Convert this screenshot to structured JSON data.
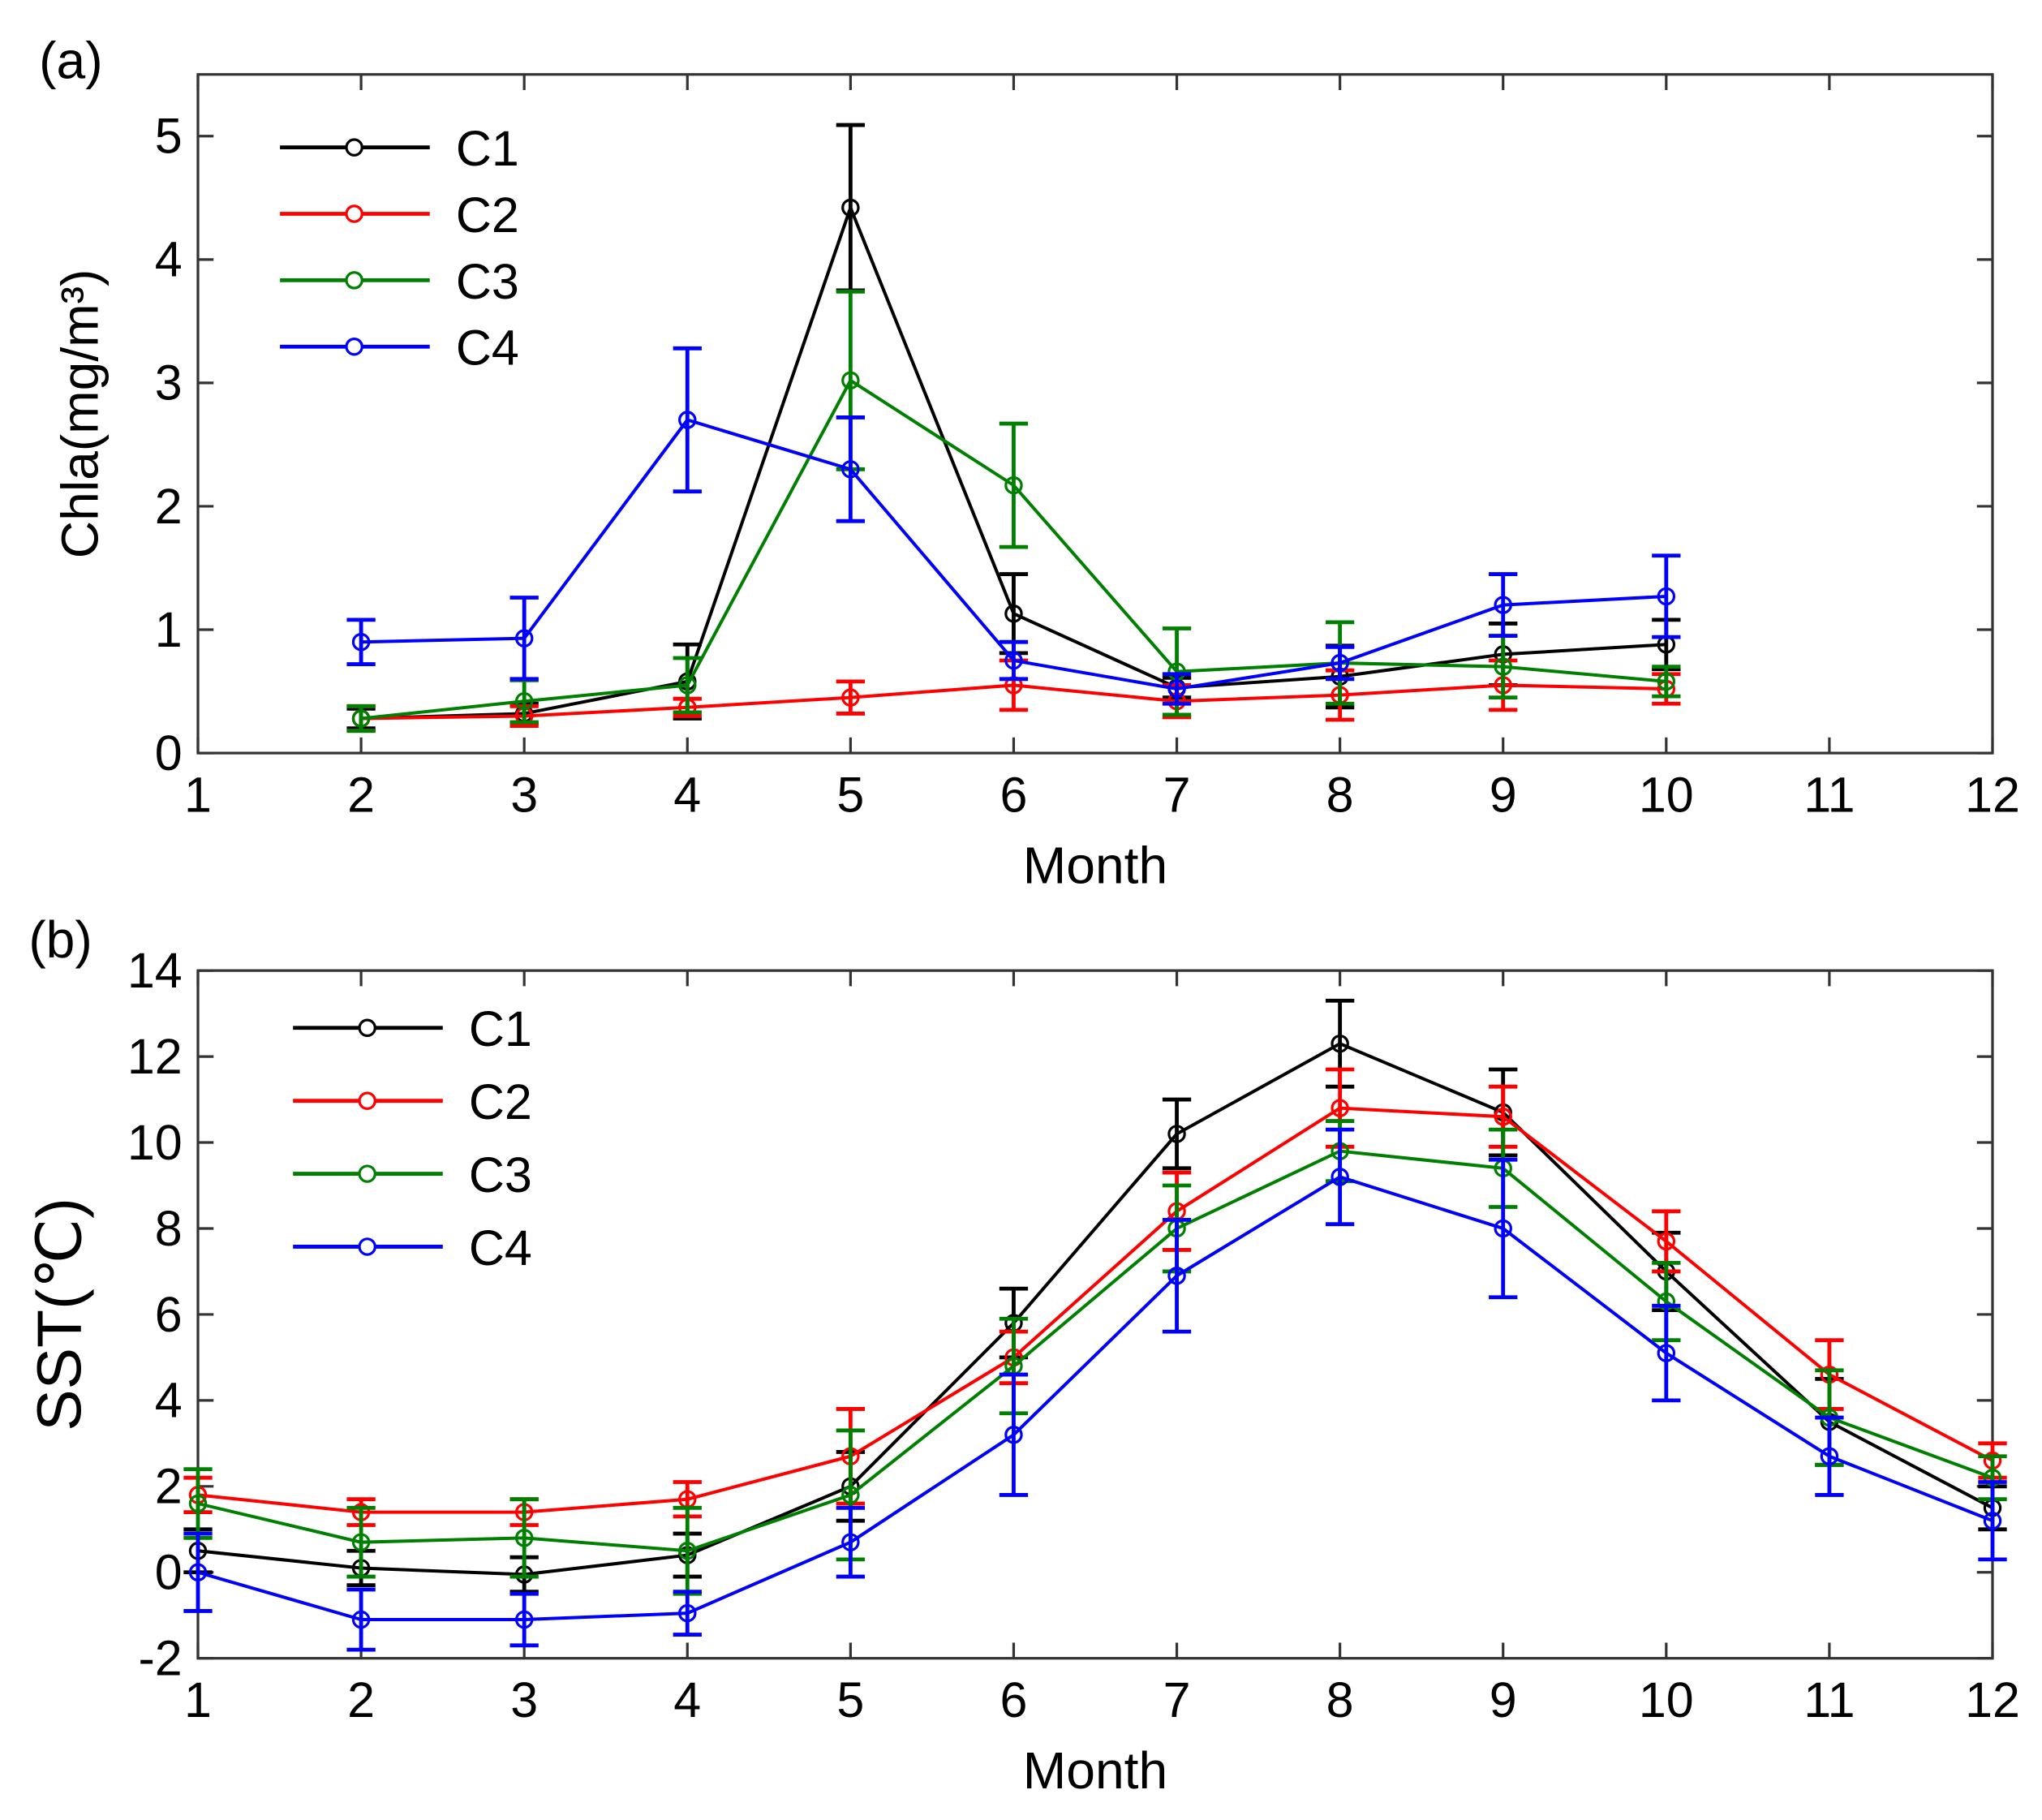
{
  "chart_data": [
    {
      "type": "line",
      "panel_label": "(a)",
      "xlabel": "Month",
      "ylabel": "Chla(mg/m³)",
      "xlim": [
        1,
        12
      ],
      "ylim": [
        0,
        5.5
      ],
      "xticks": [
        "1",
        "2",
        "3",
        "4",
        "5",
        "6",
        "7",
        "8",
        "9",
        "10",
        "11",
        "12"
      ],
      "yticks": [
        "0",
        "1",
        "2",
        "3",
        "4",
        "5"
      ],
      "ytick_values": [
        0,
        1,
        2,
        3,
        4,
        5
      ],
      "legend_position": "top-left",
      "x": [
        2,
        3,
        4,
        5,
        6,
        7,
        8,
        9,
        10
      ],
      "series": [
        {
          "name": "C1",
          "color": "#000000",
          "values": [
            0.28,
            0.32,
            0.58,
            4.42,
            1.13,
            0.53,
            0.62,
            0.8,
            0.88
          ],
          "errors": [
            0.08,
            0.08,
            0.3,
            0.67,
            0.32,
            0.08,
            0.25,
            0.25,
            0.2
          ]
        },
        {
          "name": "C2",
          "color": "#ff0000",
          "values": [
            0.28,
            0.3,
            0.37,
            0.45,
            0.55,
            0.42,
            0.47,
            0.55,
            0.52
          ],
          "errors": [
            0.1,
            0.08,
            0.07,
            0.13,
            0.2,
            0.13,
            0.2,
            0.2,
            0.12
          ]
        },
        {
          "name": "C3",
          "color": "#008000",
          "values": [
            0.28,
            0.42,
            0.55,
            3.02,
            2.17,
            0.66,
            0.73,
            0.7,
            0.58
          ],
          "errors": [
            0.1,
            0.17,
            0.22,
            0.72,
            0.5,
            0.35,
            0.33,
            0.25,
            0.12
          ]
        },
        {
          "name": "C4",
          "color": "#0000ff",
          "values": [
            0.9,
            0.93,
            2.7,
            2.3,
            0.75,
            0.52,
            0.73,
            1.2,
            1.27
          ],
          "errors": [
            0.18,
            0.33,
            0.58,
            0.42,
            0.15,
            0.12,
            0.13,
            0.25,
            0.33
          ]
        }
      ]
    },
    {
      "type": "line",
      "panel_label": "(b)",
      "xlabel": "Month",
      "ylabel": "SST(℃)",
      "xlim": [
        1,
        12
      ],
      "ylim": [
        -2,
        14
      ],
      "xticks": [
        "1",
        "2",
        "3",
        "4",
        "5",
        "6",
        "7",
        "8",
        "9",
        "10",
        "11",
        "12"
      ],
      "yticks": [
        "-2",
        "0",
        "2",
        "4",
        "6",
        "8",
        "10",
        "12",
        "14"
      ],
      "ytick_values": [
        -2,
        0,
        2,
        4,
        6,
        8,
        10,
        12,
        14
      ],
      "legend_position": "top-left",
      "x": [
        1,
        2,
        3,
        4,
        5,
        6,
        7,
        8,
        9,
        10,
        11,
        12
      ],
      "series": [
        {
          "name": "C1",
          "color": "#000000",
          "values": [
            0.5,
            0.1,
            -0.05,
            0.4,
            2.0,
            5.8,
            10.2,
            12.3,
            10.7,
            7.0,
            3.5,
            1.5
          ],
          "errors": [
            0.5,
            0.4,
            0.4,
            0.5,
            0.8,
            0.8,
            0.8,
            1.0,
            1.0,
            0.9,
            1.0,
            0.5
          ]
        },
        {
          "name": "C2",
          "color": "#ff0000",
          "values": [
            1.8,
            1.4,
            1.4,
            1.7,
            2.7,
            5.0,
            8.4,
            10.8,
            10.6,
            7.7,
            4.6,
            2.6
          ],
          "errors": [
            0.4,
            0.3,
            0.3,
            0.4,
            1.1,
            0.6,
            0.9,
            0.9,
            0.7,
            0.7,
            0.8,
            0.4
          ]
        },
        {
          "name": "C3",
          "color": "#008000",
          "values": [
            1.6,
            0.7,
            0.8,
            0.5,
            1.8,
            4.8,
            8.0,
            9.8,
            9.4,
            6.3,
            3.6,
            2.2
          ],
          "errors": [
            0.8,
            0.8,
            0.9,
            1.0,
            1.5,
            1.1,
            1.0,
            0.7,
            0.9,
            0.9,
            1.1,
            0.5
          ]
        },
        {
          "name": "C4",
          "color": "#0000ff",
          "values": [
            0.0,
            -1.1,
            -1.1,
            -0.95,
            0.7,
            3.2,
            6.9,
            9.2,
            8.0,
            5.1,
            2.7,
            1.2
          ],
          "errors": [
            0.9,
            0.7,
            0.6,
            0.5,
            0.8,
            1.4,
            1.3,
            1.1,
            1.6,
            1.1,
            0.9,
            0.9
          ]
        }
      ]
    }
  ]
}
